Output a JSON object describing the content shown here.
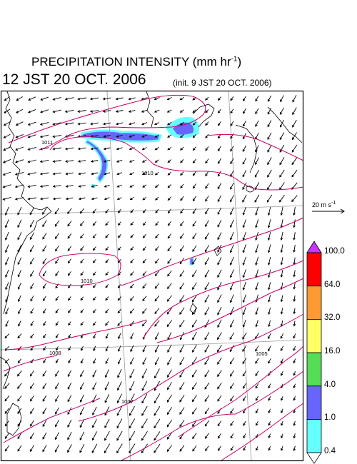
{
  "header": {
    "title_main": "PRECIPITATION INTENSITY (mm hr",
    "title_sup": "-1",
    "title_end": ")",
    "valid_time": "12 JST 20 OCT. 2006",
    "init_time": "(init. 9 JST 20 OCT. 2006)"
  },
  "wind_scale": {
    "label_main": "20 m s",
    "label_sup": "-1"
  },
  "colorbar": {
    "labels": [
      "100.0",
      "64.0",
      "32.0",
      "16.0",
      "4.0",
      "1.0",
      "0.4"
    ],
    "colors": [
      "#ff00ff",
      "#ff0000",
      "#ff9933",
      "#ffff66",
      "#55dd55",
      "#6666ff",
      "#66ffff"
    ],
    "top_triangle_color": "#cc33ff"
  },
  "isobar_labels": [
    "1011",
    "1010",
    "1010",
    "1008",
    "1007",
    "1005"
  ],
  "map": {
    "coastline_color": "#000000",
    "isobar_color": "#cc0066",
    "grid_color": "#999999"
  }
}
